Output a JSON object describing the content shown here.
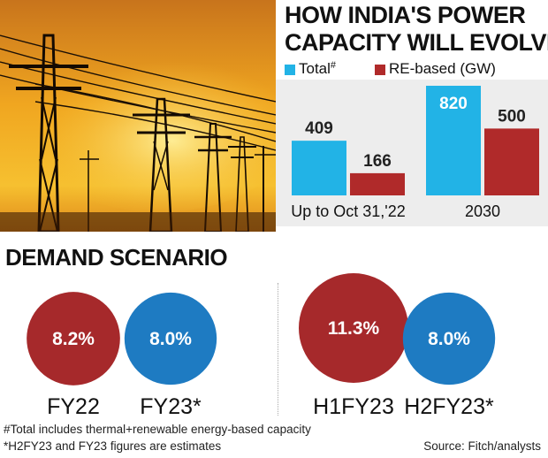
{
  "headline": {
    "line1": "HOW INDIA'S POWER",
    "line2": "CAPACITY WILL EVOLVE"
  },
  "legend": {
    "total_label": "Total",
    "total_mark": "#",
    "re_label": "RE-based (GW)"
  },
  "colors": {
    "total": "#22b3e6",
    "re": "#b02a2a",
    "growth_red": "#a6292b",
    "growth_blue": "#1e7bc2"
  },
  "chart_data": [
    {
      "type": "bar",
      "categories": [
        "Up to Oct 31,'22",
        "2030"
      ],
      "series": [
        {
          "name": "Total",
          "values": [
            409,
            820
          ]
        },
        {
          "name": "RE-based (GW)",
          "values": [
            166,
            500
          ]
        }
      ],
      "ylim": [
        0,
        820
      ]
    },
    {
      "type": "bubble",
      "title": "DEMAND SCENARIO",
      "groups": [
        {
          "items": [
            {
              "label": "FY22",
              "value": 8.2,
              "text": "8.2%",
              "color": "red"
            },
            {
              "label": "FY23*",
              "value": 8.0,
              "text": "8.0%",
              "color": "blue"
            }
          ]
        },
        {
          "items": [
            {
              "label": "H1FY23",
              "value": 11.3,
              "text": "11.3%",
              "color": "red"
            },
            {
              "label": "H2FY23*",
              "value": 8.0,
              "text": "8.0%",
              "color": "blue"
            }
          ]
        }
      ]
    }
  ],
  "footnotes": {
    "note1": "#Total includes thermal+renewable energy-based capacity",
    "note2": "*H2FY23 and FY23 figures are estimates",
    "source": "Source: Fitch/analysts"
  }
}
